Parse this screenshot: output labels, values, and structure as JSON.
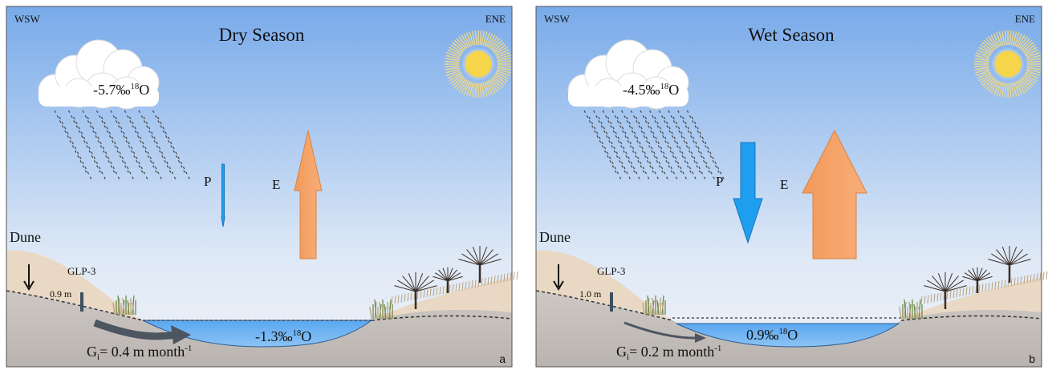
{
  "panels": [
    {
      "letter": "a",
      "left_direction": "WSW",
      "right_direction": "ENE",
      "title": "Dry Season",
      "rain_isotope": {
        "value": "-5.7‰",
        "mass": "18",
        "element": "O"
      },
      "precipitation_label": "P",
      "evaporation_label": "E",
      "dune_label": "Dune",
      "well_label": "GLP-3",
      "water_depth": "0.9 m",
      "groundwater_inflow": {
        "symbol": "G",
        "subscript": "i",
        "text": "= 0.4 m month",
        "exponent": "-1"
      },
      "lake_isotope": {
        "value": "-1.3‰",
        "mass": "18",
        "element": "O"
      }
    },
    {
      "letter": "b",
      "left_direction": "WSW",
      "right_direction": "ENE",
      "title": "Wet Season",
      "rain_isotope": {
        "value": "-4.5‰",
        "mass": "18",
        "element": "O"
      },
      "precipitation_label": "P",
      "evaporation_label": "E",
      "dune_label": "Dune",
      "well_label": "GLP-3",
      "water_depth": "1.0 m",
      "groundwater_inflow": {
        "symbol": "G",
        "subscript": "i",
        "text": "= 0.2 m month",
        "exponent": "-1"
      },
      "lake_isotope": {
        "value": "0.9‰",
        "mass": "18",
        "element": "O"
      }
    }
  ]
}
